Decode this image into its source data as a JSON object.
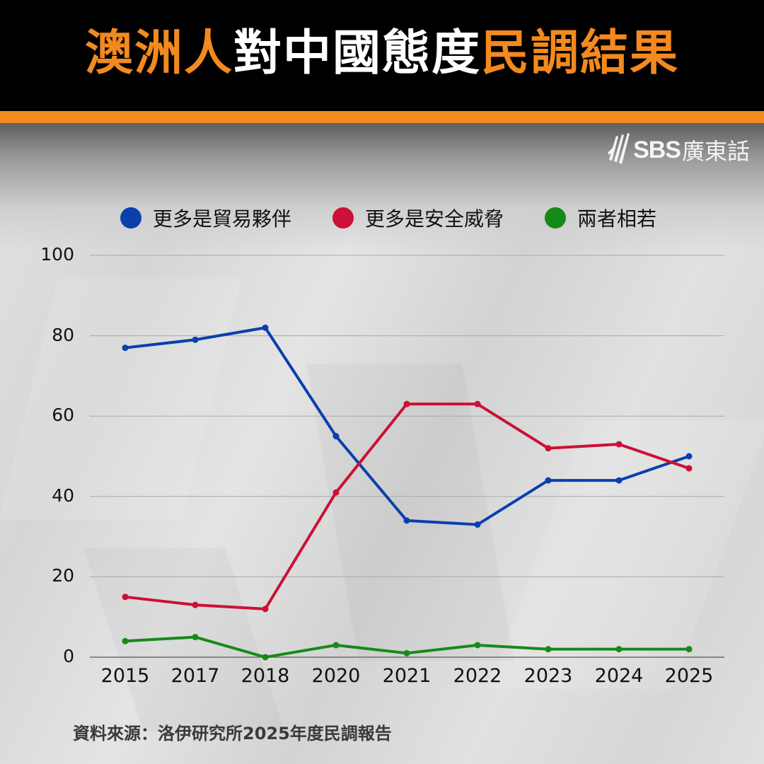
{
  "header": {
    "title_parts": [
      {
        "text": "澳洲人",
        "color": "orange"
      },
      {
        "text": "對中國態度",
        "color": "white"
      },
      {
        "text": "民調結果",
        "color": "orange"
      }
    ]
  },
  "logo": {
    "brand": "SBS",
    "language": "廣東話"
  },
  "legend": [
    {
      "label": "更多是貿易夥伴",
      "color": "#0a3fae"
    },
    {
      "label": "更多是安全威脅",
      "color": "#cc1036"
    },
    {
      "label": "兩者相若",
      "color": "#168a19"
    }
  ],
  "source": "資料來源：洛伊研究所2025年度民調報告",
  "colors": {
    "accent": "#f28a1f",
    "header_bg": "#000000"
  },
  "chart_data": {
    "type": "line",
    "title": "澳洲人對中國態度民調結果",
    "xlabel": "",
    "ylabel": "",
    "ylim": [
      0,
      100
    ],
    "yticks": [
      0,
      20,
      40,
      60,
      80,
      100
    ],
    "grid": true,
    "legend_position": "top",
    "categories": [
      "2015",
      "2017",
      "2018",
      "2020",
      "2021",
      "2022",
      "2023",
      "2024",
      "2025"
    ],
    "series": [
      {
        "name": "更多是貿易夥伴",
        "color": "#0a3fae",
        "values": [
          77,
          79,
          82,
          55,
          34,
          33,
          44,
          44,
          50
        ]
      },
      {
        "name": "更多是安全威脅",
        "color": "#cc1036",
        "values": [
          15,
          13,
          12,
          41,
          63,
          63,
          52,
          53,
          47
        ]
      },
      {
        "name": "兩者相若",
        "color": "#168a19",
        "values": [
          4,
          5,
          0,
          3,
          1,
          3,
          2,
          2,
          2
        ]
      }
    ],
    "annotations": [
      "資料來源：洛伊研究所2025年度民調報告"
    ]
  }
}
